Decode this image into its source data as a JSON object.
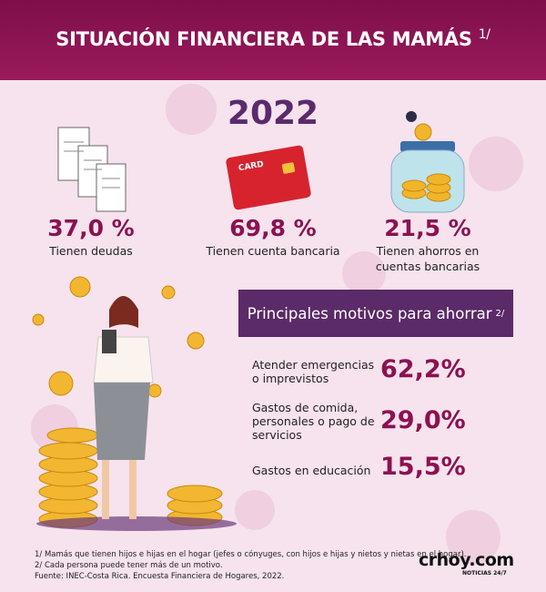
{
  "header": {
    "title": "SITUACIÓN FINANCIERA DE LAS MAMÁS",
    "note": "1/"
  },
  "year": "2022",
  "card": {
    "label": "CARD"
  },
  "stats": [
    {
      "value": "37,0 %",
      "label": "Tienen deudas"
    },
    {
      "value": "69,8 %",
      "label": "Tienen cuenta bancaria"
    },
    {
      "value": "21,5 %",
      "label": "Tienen ahorros en cuentas bancarias"
    }
  ],
  "motives": {
    "title": "Principales motivos para ahorrar",
    "note": "2/",
    "items": [
      {
        "label": "Atender emergencias o imprevistos",
        "value": "62,2%"
      },
      {
        "label": "Gastos de comida, personales o pago de servicios",
        "value": "29,0%"
      },
      {
        "label": "Gastos en educación",
        "value": "15,5%"
      }
    ]
  },
  "footnotes": [
    "1/ Mamás que tienen hijos e hijas en el hogar (jefes o cónyuges, con hijos e hijas y nietos y nietas en el hogar).",
    "2/ Cada persona puede tener más de un motivo.",
    "Fuente: INEC-Costa Rica. Encuesta Financiera de Hogares, 2022."
  ],
  "logo": {
    "name": "crhoy.com",
    "tagline": "NOTICIAS 24/7"
  }
}
